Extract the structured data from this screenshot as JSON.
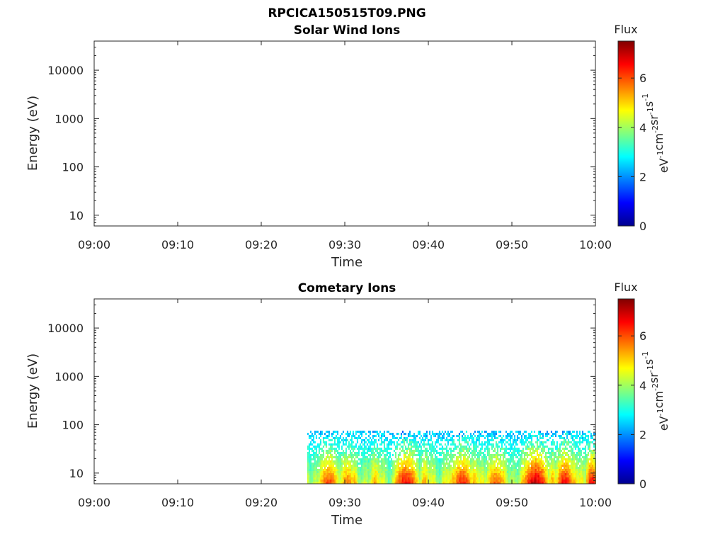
{
  "figure_title": "RPCICA150515T09.PNG",
  "chart_data": [
    {
      "type": "heatmap",
      "title": "Solar Wind Ions",
      "xlabel": "Time",
      "ylabel": "Energy (eV)",
      "x_ticks": [
        "09:00",
        "09:10",
        "09:20",
        "09:30",
        "09:40",
        "09:50",
        "10:00"
      ],
      "x_range": [
        "09:00",
        "10:00"
      ],
      "y_scale": "log",
      "y_ticks": [
        10,
        100,
        1000,
        10000
      ],
      "y_tick_labels": [
        "10",
        "100",
        "1000",
        "10000"
      ],
      "y_range": [
        6,
        40000
      ],
      "colorbar": {
        "title": "Flux",
        "label_base": "eV",
        "label_parts": [
          "-1",
          "cm",
          "-2",
          "sr",
          "-1",
          "s",
          "-1"
        ],
        "ticks": [
          0,
          2,
          4,
          6
        ],
        "range": [
          0,
          7.5
        ],
        "colormap": "jet"
      },
      "data": "no data shown"
    },
    {
      "type": "heatmap",
      "title": "Cometary Ions",
      "xlabel": "Time",
      "ylabel": "Energy (eV)",
      "x_ticks": [
        "09:00",
        "09:10",
        "09:20",
        "09:30",
        "09:40",
        "09:50",
        "10:00"
      ],
      "x_range": [
        "09:00",
        "10:00"
      ],
      "y_scale": "log",
      "y_ticks": [
        10,
        100,
        1000,
        10000
      ],
      "y_tick_labels": [
        "10",
        "100",
        "1000",
        "10000"
      ],
      "y_range": [
        6,
        40000
      ],
      "colorbar": {
        "title": "Flux",
        "label_base": "eV",
        "label_parts": [
          "-1",
          "cm",
          "-2",
          "sr",
          "-1",
          "s",
          "-1"
        ],
        "ticks": [
          0,
          2,
          4,
          6
        ],
        "range": [
          0,
          7.5
        ],
        "colormap": "jet"
      },
      "data_time_start": "09:25:30",
      "data_time_end": "10:00",
      "data_energy_max": 80,
      "intense_intervals": [
        {
          "start": "09:27",
          "end": "09:29",
          "peak": 6.3
        },
        {
          "start": "09:29:30",
          "end": "09:31",
          "peak": 5.8
        },
        {
          "start": "09:36",
          "end": "09:38:30",
          "peak": 6.8
        },
        {
          "start": "09:43",
          "end": "09:45",
          "peak": 6.6
        },
        {
          "start": "09:47",
          "end": "09:49",
          "peak": 6.0
        },
        {
          "start": "09:51:30",
          "end": "09:54",
          "peak": 7.3
        },
        {
          "start": "09:55:30",
          "end": "09:57",
          "peak": 6.9
        },
        {
          "start": "09:59",
          "end": "10:00",
          "peak": 6.8
        }
      ]
    }
  ]
}
